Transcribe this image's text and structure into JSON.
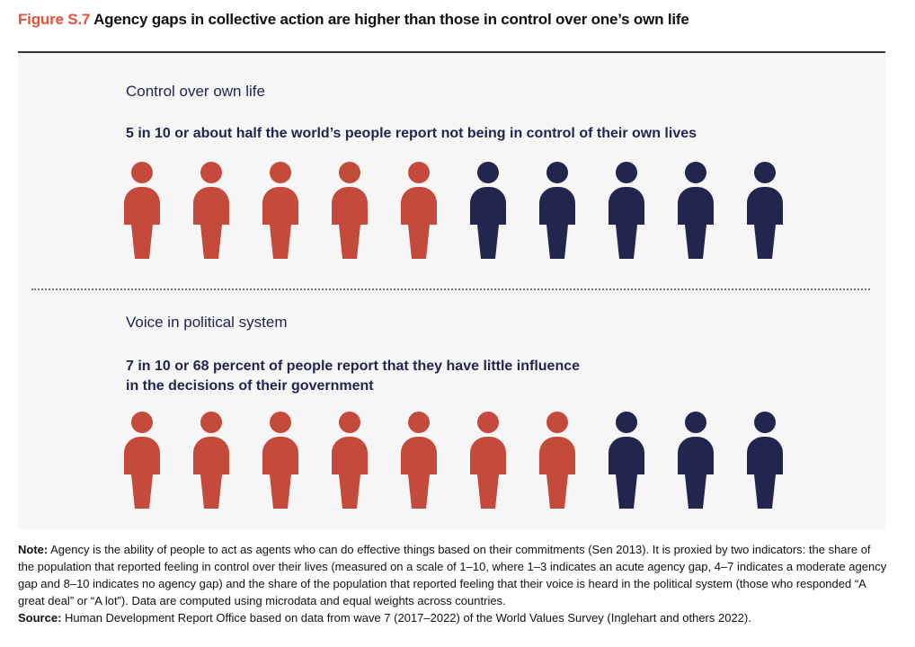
{
  "title": {
    "figure_label": "Figure S.7",
    "text": "Agency gaps in collective action are higher than those in control over one’s own life"
  },
  "colors": {
    "highlight": "#c44b3c",
    "rest": "#22264f",
    "figure_label": "#e8503a"
  },
  "chart_data": [
    {
      "type": "pictogram",
      "title": "Control over own life",
      "subtitle": "5 in 10 or about half the world’s people report not being in control of their own lives",
      "total": 10,
      "highlighted": 5
    },
    {
      "type": "pictogram",
      "title": "Voice in political system",
      "subtitle_line1": "7 in 10 or 68 percent of people report that they have little influence",
      "subtitle_line2": "in the decisions of their government",
      "total": 10,
      "highlighted": 7
    }
  ],
  "note": {
    "label": "Note:",
    "text": " Agency is the ability of people to act as agents who can do effective things based on their commitments (Sen 2013). It is proxied by two indicators: the share of the population that reported feeling in control over their lives (measured on a scale of 1–10, where 1–3 indicates an acute agency gap, 4–7 indicates a moderate agency gap and 8–10 indicates no agency gap) and the share of the population that reported feeling that their voice is heard in the political system (those who responded “A great deal” or “A lot”). Data are computed using microdata and equal weights across countries.",
    "source_label": "Source:",
    "source_text": " Human Development Report Office based on data from wave 7 (2017–2022) of the World Values Survey (Inglehart and others 2022)."
  }
}
